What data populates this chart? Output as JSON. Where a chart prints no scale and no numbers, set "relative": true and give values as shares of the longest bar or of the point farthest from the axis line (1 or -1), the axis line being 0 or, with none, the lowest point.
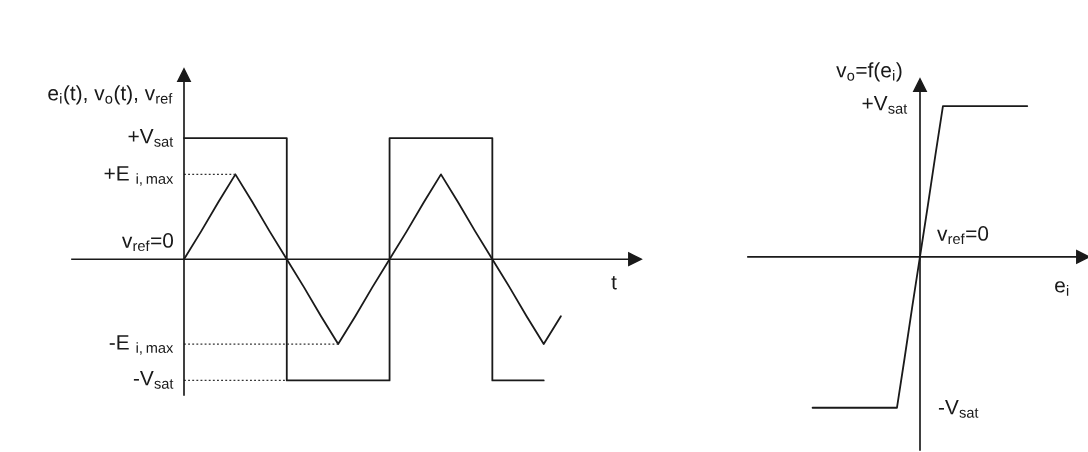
{
  "chart_data": [
    {
      "type": "line",
      "relative": true,
      "xlabel": "t",
      "ylabel": "e$_{i}$(t), v$_{o}$(t), v$_{ref}$",
      "categories": [
        null,
        null,
        null,
        null,
        null,
        null,
        null,
        null,
        null,
        null,
        null,
        null,
        null,
        null,
        null,
        null,
        null,
        null,
        null,
        null,
        null,
        null,
        null
      ],
      "series": [
        {
          "type": "step",
          "color": "#1a1a1a",
          "values": [
            1,
            1,
            1,
            1,
            1,
            1,
            -1,
            -1,
            -1,
            -1,
            -1,
            -1,
            1,
            1,
            1,
            1,
            1,
            1,
            -1,
            -1,
            -1,
            -1,
            null
          ]
        },
        {
          "color": "#1a1a1a",
          "values": [
            0,
            0.23,
            0.47,
            0.7,
            0.47,
            0.23,
            0,
            -0.23,
            -0.47,
            -0.7,
            -0.47,
            -0.23,
            0,
            0.23,
            0.47,
            0.7,
            0.47,
            0.23,
            0,
            -0.23,
            -0.47,
            -0.7,
            -0.47
          ]
        },
        {
          "color": "#333333",
          "line_style": "dotted",
          "values": [
            0.7,
            0.7,
            0.7,
            0.7,
            null,
            null,
            null,
            null,
            null,
            null,
            null,
            null,
            null,
            null,
            null,
            null,
            null,
            null,
            null,
            null,
            null,
            null,
            null
          ]
        },
        {
          "color": "#333333",
          "line_style": "dotted",
          "values": [
            -0.7,
            -0.7,
            -0.7,
            -0.7,
            -0.7,
            -0.7,
            -0.7,
            -0.7,
            -0.7,
            -0.7,
            null,
            null,
            null,
            null,
            null,
            null,
            null,
            null,
            null,
            null,
            null,
            null,
            null
          ]
        },
        {
          "color": "#333333",
          "line_style": "dotted",
          "values": [
            -1,
            -1,
            -1,
            -1,
            -1,
            -1,
            -1,
            null,
            null,
            null,
            null,
            null,
            null,
            null,
            null,
            null,
            null,
            null,
            null,
            null,
            null,
            null,
            null
          ]
        }
      ],
      "annotations": [
        "+V$_{sat}$",
        "+E $_{i,max}$",
        "v$_{ref}$=0",
        "-E $_{i,max}$",
        "-V$_{sat}$"
      ]
    },
    {
      "type": "line",
      "relative": true,
      "xlabel": "e$_{i}$",
      "ylabel": "v$_{o}$=f(e$_{i}$)",
      "categories": [
        null,
        null,
        null,
        null,
        null,
        null,
        null,
        null,
        null,
        null,
        null,
        null,
        null,
        null,
        null,
        null,
        null,
        null,
        null,
        null,
        null,
        null,
        null,
        null,
        null,
        null,
        null,
        null,
        null
      ],
      "series": [
        {
          "color": "#1a1a1a",
          "values": [
            -1,
            -1,
            -1,
            -1,
            -1,
            -1,
            -1,
            -1,
            -1,
            -1,
            -1,
            -1,
            -0.67,
            -0.33,
            0,
            0.33,
            0.67,
            1,
            1,
            1,
            1,
            1,
            1,
            1,
            1,
            1,
            1,
            1,
            1
          ]
        }
      ],
      "annotations": [
        "+V$_{sat}$",
        "v$_{ref}$=0",
        "-V$_{sat}$"
      ]
    }
  ]
}
